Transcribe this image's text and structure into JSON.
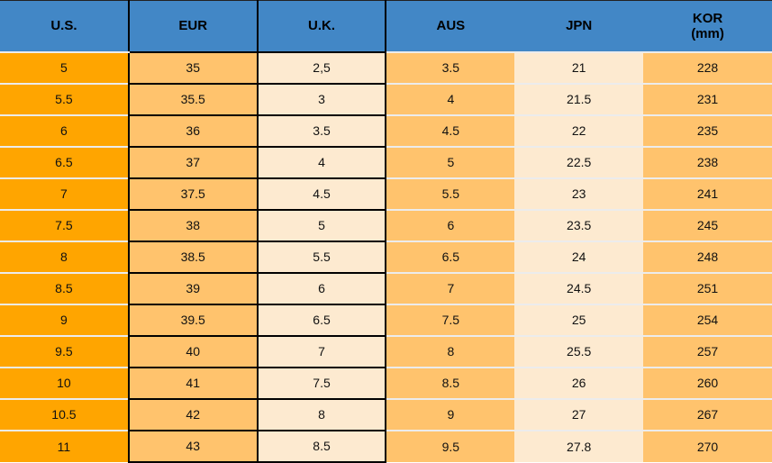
{
  "chart_data": {
    "type": "table",
    "title": "",
    "columns": [
      "U.S.",
      "EUR",
      "U.K.",
      "AUS",
      "JPN",
      "KOR (mm)"
    ],
    "rows": [
      [
        "5",
        "35",
        "2,5",
        "3.5",
        "21",
        "228"
      ],
      [
        "5.5",
        "35.5",
        "3",
        "4",
        "21.5",
        "231"
      ],
      [
        "6",
        "36",
        "3.5",
        "4.5",
        "22",
        "235"
      ],
      [
        "6.5",
        "37",
        "4",
        "5",
        "22.5",
        "238"
      ],
      [
        "7",
        "37.5",
        "4.5",
        "5.5",
        "23",
        "241"
      ],
      [
        "7.5",
        "38",
        "5",
        "6",
        "23.5",
        "245"
      ],
      [
        "8",
        "38.5",
        "5.5",
        "6.5",
        "24",
        "248"
      ],
      [
        "8.5",
        "39",
        "6",
        "7",
        "24.5",
        "251"
      ],
      [
        "9",
        "39.5",
        "6.5",
        "7.5",
        "25",
        "254"
      ],
      [
        "9.5",
        "40",
        "7",
        "8",
        "25.5",
        "257"
      ],
      [
        "10",
        "41",
        "7.5",
        "8.5",
        "26",
        "260"
      ],
      [
        "10.5",
        "42",
        "8",
        "9",
        "27",
        "267"
      ],
      [
        "11",
        "43",
        "8.5",
        "9.5",
        "27.8",
        "270"
      ]
    ]
  },
  "header": {
    "us": "U.S.",
    "eur": "EUR",
    "uk": "U.K.",
    "aus": "AUS",
    "jpn": "JPN",
    "kor": "KOR",
    "kor_sub": "(mm)"
  },
  "colors": {
    "header_bg": "#4287C6",
    "col_us_bg": "#FFA500",
    "col_accent_bg": "#FFC36D",
    "col_cream_bg": "#FDEAD0",
    "grid_black": "#000000",
    "grid_light": "#ECECEC",
    "text": "#111111"
  }
}
